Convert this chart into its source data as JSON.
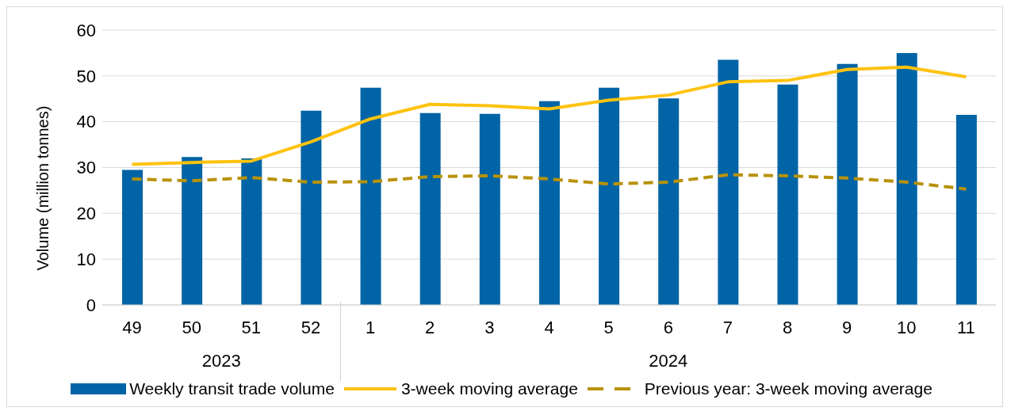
{
  "chart_data": {
    "type": "bar",
    "ylabel": "Volume (million tonnes)",
    "categories": [
      "49",
      "50",
      "51",
      "52",
      "1",
      "2",
      "3",
      "4",
      "5",
      "6",
      "7",
      "8",
      "9",
      "10",
      "11"
    ],
    "annotations": [
      "2023",
      "2024"
    ],
    "series": [
      {
        "name": "Weekly transit trade volume",
        "color": "#0064a6",
        "values": [
          29.5,
          32.3,
          32.0,
          42.4,
          47.4,
          41.9,
          41.7,
          44.5,
          47.4,
          45.1,
          53.5,
          48.1,
          52.6,
          55.0,
          41.5
        ]
      },
      {
        "name": "3-week moving average",
        "type": "line",
        "color": "#ffc20e",
        "line_style": "solid",
        "values": [
          30.7,
          31.1,
          31.4,
          35.6,
          40.6,
          43.8,
          43.5,
          42.8,
          44.7,
          45.8,
          48.7,
          49.0,
          51.4,
          51.9,
          49.8
        ]
      },
      {
        "name": "Previous year: 3-week moving average",
        "type": "line",
        "color": "#b8920c",
        "line_style": "dashed",
        "values": [
          27.5,
          27.1,
          27.8,
          26.8,
          26.9,
          28.0,
          28.2,
          27.5,
          26.4,
          26.8,
          28.4,
          28.2,
          27.7,
          26.8,
          25.3
        ]
      }
    ],
    "ylim": [
      0,
      60
    ],
    "yticks": [
      0,
      10,
      20,
      30,
      40,
      50,
      60
    ],
    "grid": "y",
    "legend": "bottom",
    "marker": "none"
  }
}
